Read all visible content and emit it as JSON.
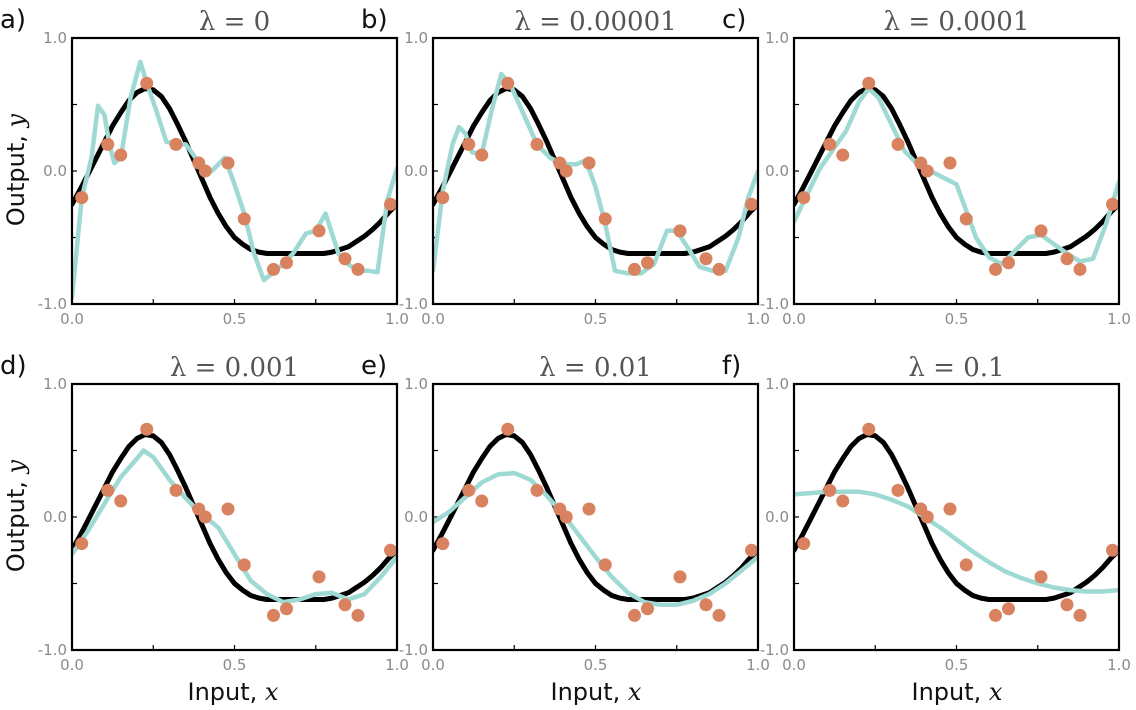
{
  "figure": {
    "ylabel_text": "Output, ",
    "ylabel_var": "y",
    "xlabel_text": "Input, ",
    "xlabel_var": "x"
  },
  "colors": {
    "true_function": "#000000",
    "fitted_model": "#9ed9d3",
    "data_points": "#d9825f",
    "axes": "#000000",
    "tick_labels": "#8a8a8a"
  },
  "chart_data": [
    {
      "type": "line",
      "label": "a)",
      "title": "λ = 0",
      "xlim": [
        0,
        1
      ],
      "ylim": [
        -1,
        1
      ],
      "xticks": [
        "0.0",
        "0.5",
        "1.0"
      ],
      "yticks": [
        "1.0",
        "0.0",
        "-1.0"
      ],
      "fit_x": [
        0.0,
        0.03,
        0.06,
        0.08,
        0.1,
        0.115,
        0.13,
        0.15,
        0.18,
        0.21,
        0.23,
        0.26,
        0.29,
        0.32,
        0.35,
        0.38,
        0.4,
        0.43,
        0.47,
        0.5,
        0.53,
        0.56,
        0.59,
        0.62,
        0.65,
        0.68,
        0.72,
        0.75,
        0.78,
        0.82,
        0.85,
        0.88,
        0.91,
        0.94,
        0.97,
        1.0
      ],
      "fit_y": [
        -0.95,
        -0.2,
        0.1,
        0.49,
        0.42,
        0.2,
        0.06,
        0.1,
        0.55,
        0.82,
        0.66,
        0.45,
        0.22,
        0.2,
        0.2,
        0.1,
        0.05,
        0.0,
        0.1,
        -0.1,
        -0.32,
        -0.62,
        -0.82,
        -0.76,
        -0.7,
        -0.62,
        -0.47,
        -0.45,
        -0.32,
        -0.62,
        -0.7,
        -0.75,
        -0.75,
        -0.76,
        -0.22,
        0.02
      ]
    },
    {
      "type": "line",
      "label": "b)",
      "title": "λ = 0.00001",
      "xlim": [
        0,
        1
      ],
      "ylim": [
        -1,
        1
      ],
      "xticks": [
        "0.0",
        "0.5",
        "1.0"
      ],
      "yticks": [
        "1.0",
        "0.0",
        "-1.0"
      ],
      "fit_x": [
        0.0,
        0.03,
        0.06,
        0.08,
        0.1,
        0.12,
        0.15,
        0.18,
        0.21,
        0.24,
        0.28,
        0.32,
        0.36,
        0.4,
        0.44,
        0.47,
        0.5,
        0.53,
        0.56,
        0.6,
        0.64,
        0.68,
        0.72,
        0.75,
        0.79,
        0.82,
        0.86,
        0.9,
        0.94,
        0.97,
        1.0
      ],
      "fit_y": [
        -0.75,
        -0.15,
        0.2,
        0.33,
        0.28,
        0.14,
        0.13,
        0.45,
        0.73,
        0.64,
        0.42,
        0.2,
        0.1,
        0.05,
        0.05,
        0.08,
        -0.12,
        -0.4,
        -0.75,
        -0.77,
        -0.77,
        -0.7,
        -0.45,
        -0.45,
        -0.6,
        -0.72,
        -0.75,
        -0.75,
        -0.5,
        -0.2,
        0.0
      ]
    },
    {
      "type": "line",
      "label": "c)",
      "title": "λ = 0.0001",
      "xlim": [
        0,
        1
      ],
      "ylim": [
        -1,
        1
      ],
      "xticks": [
        "0.0",
        "0.5",
        "1.0"
      ],
      "yticks": [
        "1.0",
        "0.0",
        "-1.0"
      ],
      "fit_x": [
        0.0,
        0.04,
        0.08,
        0.12,
        0.16,
        0.2,
        0.23,
        0.26,
        0.3,
        0.34,
        0.38,
        0.42,
        0.46,
        0.5,
        0.53,
        0.56,
        0.6,
        0.64,
        0.68,
        0.72,
        0.76,
        0.8,
        0.84,
        0.88,
        0.92,
        0.96,
        1.0
      ],
      "fit_y": [
        -0.38,
        -0.18,
        0.02,
        0.16,
        0.3,
        0.52,
        0.62,
        0.55,
        0.35,
        0.15,
        0.05,
        0.0,
        -0.05,
        -0.1,
        -0.3,
        -0.5,
        -0.65,
        -0.7,
        -0.6,
        -0.5,
        -0.48,
        -0.55,
        -0.62,
        -0.68,
        -0.66,
        -0.4,
        -0.08
      ]
    },
    {
      "type": "line",
      "label": "d)",
      "title": "λ = 0.001",
      "xlim": [
        0,
        1
      ],
      "ylim": [
        -1,
        1
      ],
      "xticks": [
        "0.0",
        "0.5",
        "1.0"
      ],
      "yticks": [
        "1.0",
        "0.0",
        "-1.0"
      ],
      "fit_x": [
        0.0,
        0.05,
        0.1,
        0.15,
        0.2,
        0.22,
        0.25,
        0.3,
        0.35,
        0.4,
        0.45,
        0.5,
        0.55,
        0.6,
        0.65,
        0.7,
        0.75,
        0.8,
        0.85,
        0.9,
        0.95,
        1.0
      ],
      "fit_y": [
        -0.28,
        -0.1,
        0.1,
        0.3,
        0.44,
        0.5,
        0.45,
        0.28,
        0.14,
        0.02,
        -0.08,
        -0.28,
        -0.48,
        -0.58,
        -0.64,
        -0.62,
        -0.58,
        -0.57,
        -0.62,
        -0.58,
        -0.45,
        -0.3
      ]
    },
    {
      "type": "line",
      "label": "e)",
      "title": "λ = 0.01",
      "xlim": [
        0,
        1
      ],
      "ylim": [
        -1,
        1
      ],
      "xticks": [
        "0.0",
        "0.5",
        "1.0"
      ],
      "yticks": [
        "1.0",
        "0.0",
        "-1.0"
      ],
      "fit_x": [
        0.0,
        0.05,
        0.1,
        0.15,
        0.2,
        0.25,
        0.3,
        0.35,
        0.4,
        0.45,
        0.5,
        0.55,
        0.6,
        0.65,
        0.7,
        0.75,
        0.8,
        0.85,
        0.9,
        0.95,
        1.0
      ],
      "fit_y": [
        -0.04,
        0.04,
        0.15,
        0.26,
        0.32,
        0.33,
        0.28,
        0.16,
        0.02,
        -0.14,
        -0.3,
        -0.45,
        -0.57,
        -0.64,
        -0.66,
        -0.66,
        -0.63,
        -0.58,
        -0.5,
        -0.4,
        -0.3
      ]
    },
    {
      "type": "line",
      "label": "f)",
      "title": "λ = 0.1",
      "xlim": [
        0,
        1
      ],
      "ylim": [
        -1,
        1
      ],
      "xticks": [
        "0.0",
        "0.5",
        "1.0"
      ],
      "yticks": [
        "1.0",
        "0.0",
        "-1.0"
      ],
      "fit_x": [
        0.0,
        0.05,
        0.1,
        0.15,
        0.2,
        0.25,
        0.3,
        0.35,
        0.4,
        0.45,
        0.5,
        0.55,
        0.6,
        0.65,
        0.7,
        0.75,
        0.8,
        0.85,
        0.9,
        0.95,
        1.0
      ],
      "fit_y": [
        0.17,
        0.18,
        0.19,
        0.19,
        0.19,
        0.17,
        0.13,
        0.08,
        0.0,
        -0.08,
        -0.17,
        -0.26,
        -0.34,
        -0.41,
        -0.46,
        -0.5,
        -0.53,
        -0.55,
        -0.56,
        -0.56,
        -0.55
      ]
    }
  ],
  "shared": {
    "true_x": [
      0.0,
      0.025,
      0.05,
      0.075,
      0.1,
      0.125,
      0.15,
      0.175,
      0.2,
      0.225,
      0.25,
      0.275,
      0.3,
      0.325,
      0.35,
      0.375,
      0.4,
      0.425,
      0.45,
      0.475,
      0.5,
      0.525,
      0.55,
      0.575,
      0.6,
      0.625,
      0.65,
      0.675,
      0.7,
      0.725,
      0.75,
      0.775,
      0.8,
      0.825,
      0.85,
      0.875,
      0.9,
      0.925,
      0.95,
      0.975,
      1.0
    ],
    "true_y": [
      -0.25,
      -0.14,
      -0.02,
      0.1,
      0.22,
      0.34,
      0.44,
      0.53,
      0.59,
      0.62,
      0.61,
      0.56,
      0.47,
      0.35,
      0.22,
      0.08,
      -0.06,
      -0.2,
      -0.32,
      -0.42,
      -0.5,
      -0.55,
      -0.59,
      -0.61,
      -0.62,
      -0.62,
      -0.62,
      -0.62,
      -0.62,
      -0.62,
      -0.62,
      -0.62,
      -0.61,
      -0.59,
      -0.57,
      -0.53,
      -0.49,
      -0.44,
      -0.38,
      -0.31,
      -0.25
    ],
    "points_x": [
      0.03,
      0.11,
      0.15,
      0.23,
      0.32,
      0.39,
      0.41,
      0.48,
      0.53,
      0.62,
      0.66,
      0.76,
      0.84,
      0.88,
      0.98
    ],
    "points_y": [
      -0.2,
      0.2,
      0.12,
      0.66,
      0.2,
      0.06,
      0.0,
      0.06,
      -0.36,
      -0.74,
      -0.69,
      -0.45,
      -0.66,
      -0.74,
      -0.25
    ]
  }
}
